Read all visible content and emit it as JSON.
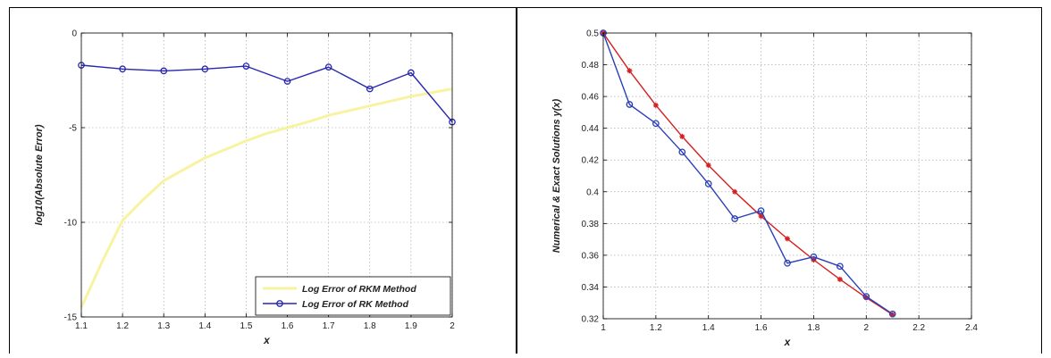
{
  "chart_data": [
    {
      "type": "line",
      "title": "",
      "xlabel": "x",
      "ylabel": "log10(Absolute Error)",
      "xlim": [
        1.1,
        2.0
      ],
      "ylim": [
        -15,
        0
      ],
      "grid": true,
      "x_ticks": [
        "1.1",
        "1.2",
        "1.3",
        "1.4",
        "1.5",
        "1.6",
        "1.7",
        "1.8",
        "1.9",
        "2"
      ],
      "y_ticks": [
        "0",
        "-5",
        "-10",
        "-15"
      ],
      "x_tick_values": [
        1.1,
        1.2,
        1.3,
        1.4,
        1.5,
        1.6,
        1.7,
        1.8,
        1.9,
        2.0
      ],
      "y_tick_values": [
        0,
        -5,
        -10,
        -15
      ],
      "legend_position": "bottom-right",
      "series": [
        {
          "name": "Log Error of RKM Method",
          "color": "#f7f3a0",
          "marker": "none",
          "x": [
            1.1,
            1.15,
            1.2,
            1.25,
            1.3,
            1.35,
            1.4,
            1.45,
            1.5,
            1.55,
            1.6,
            1.65,
            1.7,
            1.75,
            1.8,
            1.85,
            1.9,
            1.95,
            2.0
          ],
          "y": [
            -14.5,
            -12.1,
            -9.9,
            -8.8,
            -7.8,
            -7.2,
            -6.6,
            -6.15,
            -5.7,
            -5.3,
            -5.0,
            -4.7,
            -4.35,
            -4.1,
            -3.85,
            -3.6,
            -3.35,
            -3.15,
            -2.95
          ]
        },
        {
          "name": "Log Error of RK Method",
          "color": "#2626b0",
          "marker": "circle",
          "x": [
            1.1,
            1.2,
            1.3,
            1.4,
            1.5,
            1.6,
            1.7,
            1.8,
            1.9,
            2.0
          ],
          "y": [
            -1.7,
            -1.9,
            -2.0,
            -1.9,
            -1.75,
            -2.55,
            -1.8,
            -2.95,
            -2.1,
            -4.7
          ]
        }
      ]
    },
    {
      "type": "line",
      "title": "",
      "xlabel": "x",
      "ylabel": "Numerical & Exact Solutions y(x)",
      "xlim": [
        1.0,
        2.4
      ],
      "ylim": [
        0.32,
        0.5
      ],
      "grid": true,
      "x_ticks": [
        "1",
        "1.2",
        "1.4",
        "1.6",
        "1.8",
        "2",
        "2.2",
        "2.4"
      ],
      "y_ticks": [
        "0.5",
        "0.48",
        "0.46",
        "0.44",
        "0.42",
        "0.4",
        "0.38",
        "0.36",
        "0.34",
        "0.32"
      ],
      "x_tick_values": [
        1.0,
        1.2,
        1.4,
        1.6,
        1.8,
        2.0,
        2.2,
        2.4
      ],
      "y_tick_values": [
        0.5,
        0.48,
        0.46,
        0.44,
        0.42,
        0.4,
        0.38,
        0.36,
        0.34,
        0.32
      ],
      "series": [
        {
          "color": "#d42020",
          "marker": "star",
          "x": [
            1.0,
            1.1,
            1.2,
            1.3,
            1.4,
            1.5,
            1.6,
            1.7,
            1.8,
            1.9,
            2.0,
            2.1
          ],
          "y": [
            0.5,
            0.4762,
            0.4545,
            0.4348,
            0.4167,
            0.4,
            0.3846,
            0.3704,
            0.3571,
            0.3448,
            0.3333,
            0.3226
          ]
        },
        {
          "color": "#2b3fb8",
          "marker": "circle",
          "x": [
            1.0,
            1.1,
            1.2,
            1.3,
            1.4,
            1.5,
            1.6,
            1.7,
            1.8,
            1.9,
            2.0,
            2.1
          ],
          "y": [
            0.5,
            0.455,
            0.443,
            0.425,
            0.405,
            0.383,
            0.388,
            0.355,
            0.359,
            0.353,
            0.334,
            0.323
          ]
        }
      ]
    }
  ]
}
